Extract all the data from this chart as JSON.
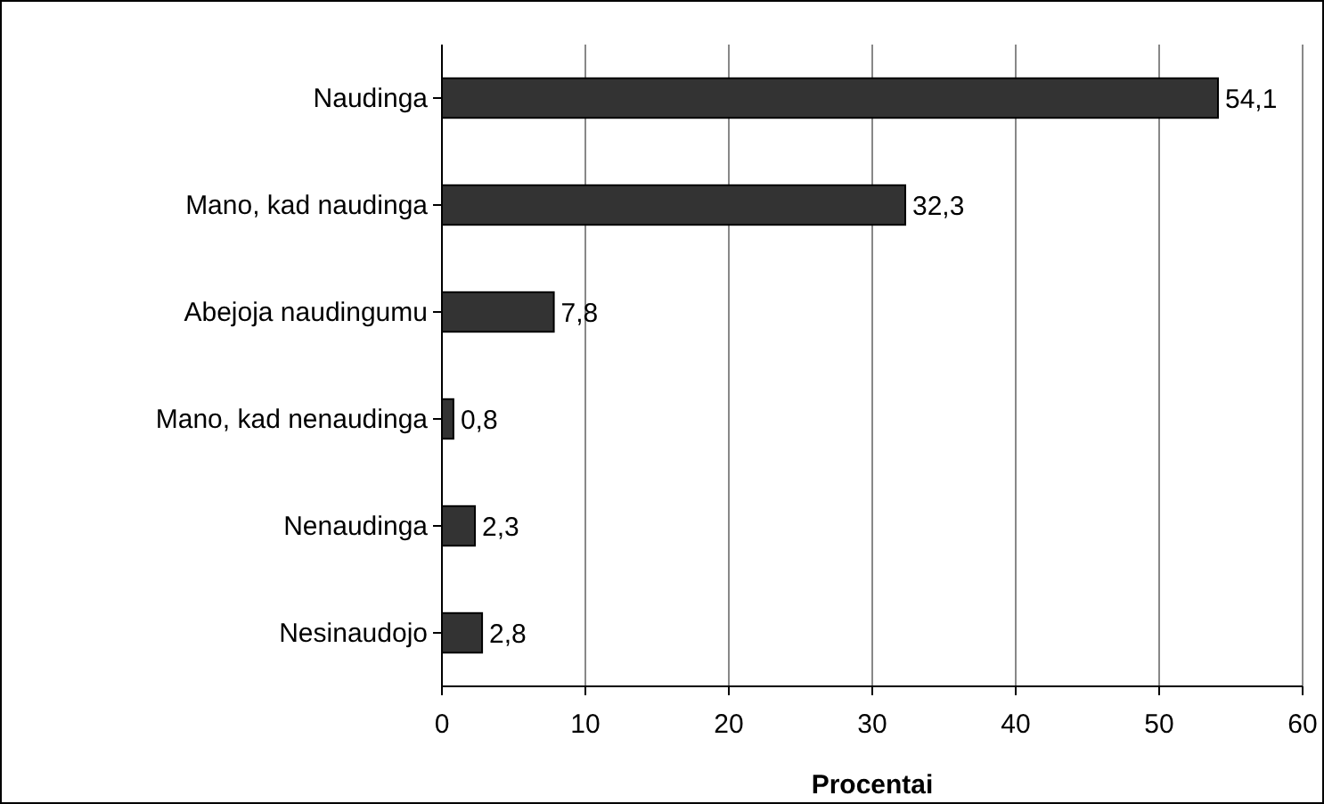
{
  "chart_data": {
    "type": "bar",
    "orientation": "horizontal",
    "xlabel": "Procentai",
    "categories": [
      "Naudinga",
      "Mano, kad naudinga",
      "Abejoja naudingumu",
      "Mano, kad nenaudinga",
      "Nenaudinga",
      "Nesinaudojo"
    ],
    "values": [
      54.1,
      32.3,
      7.8,
      0.8,
      2.3,
      2.8
    ],
    "value_labels": [
      "54,1",
      "32,3",
      "7,8",
      "0,8",
      "2,3",
      "2,8"
    ],
    "color": "#333333",
    "xlim": [
      0,
      60
    ],
    "xticks": [
      0,
      10,
      20,
      30,
      40,
      50,
      60
    ],
    "grid": "x"
  }
}
